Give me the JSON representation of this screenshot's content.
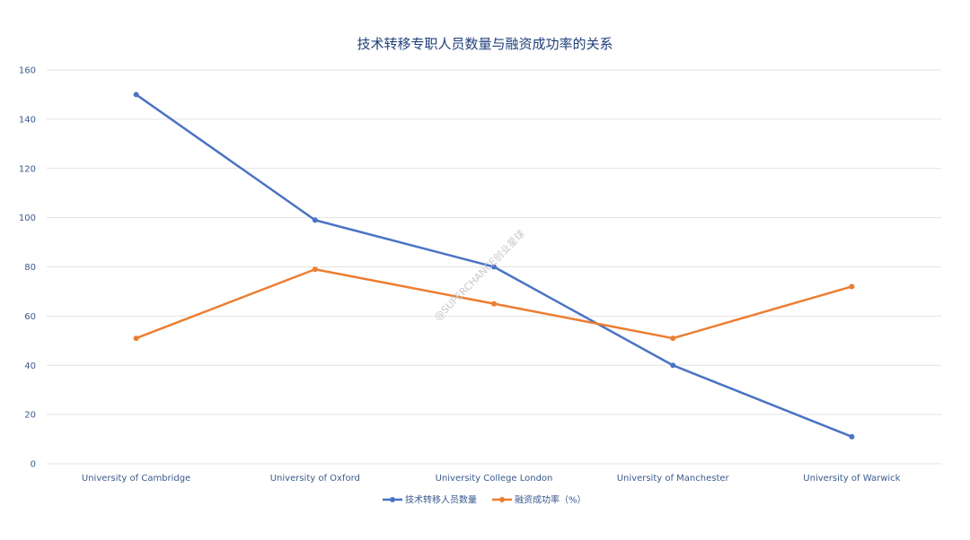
{
  "chart_data": {
    "type": "line",
    "title": "技术转移专职人员数量与融资成功率的关系",
    "categories": [
      "University of Cambridge",
      "University of Oxford",
      "University College London",
      "University of Manchester",
      "University of Warwick"
    ],
    "series": [
      {
        "name": "技术转移人员数量",
        "values": [
          150,
          99,
          80,
          40,
          11
        ],
        "color": "#4a73c4"
      },
      {
        "name": "融资成功率（%）",
        "values": [
          51,
          79,
          65,
          51,
          72
        ],
        "color": "#ed7d31"
      }
    ],
    "ylim": [
      0,
      160
    ],
    "yticks": [
      0,
      20,
      40,
      60,
      80,
      100,
      120,
      140,
      160
    ],
    "grid": true,
    "legend": "bottom-center"
  },
  "watermark": "@SUPERCHANCE创业星球"
}
